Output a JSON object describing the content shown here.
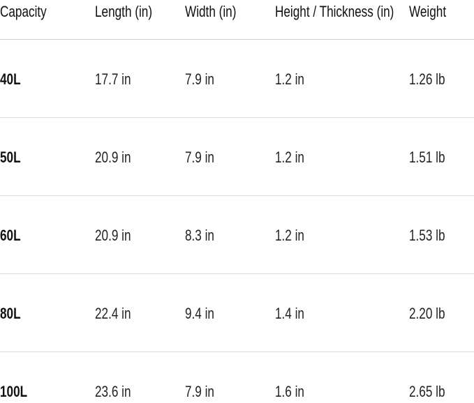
{
  "table": {
    "headers": [
      "Capacity",
      "Length (in)",
      "Width (in)",
      "Height / Thickness (in)",
      "Weight"
    ],
    "rows": [
      [
        "40L",
        "17.7 in",
        "7.9 in",
        "1.2 in",
        "1.26 lb"
      ],
      [
        "50L",
        "20.9 in",
        "7.9 in",
        "1.2 in",
        "1.51 lb"
      ],
      [
        "60L",
        "20.9 in",
        "8.3 in",
        "1.2 in",
        "1.53 lb"
      ],
      [
        "80L",
        "22.4 in",
        "9.4 in",
        "1.4 in",
        "2.20 lb"
      ],
      [
        "100L",
        "23.6 in",
        "7.9 in",
        "1.6 in",
        "2.65 lb"
      ]
    ]
  }
}
